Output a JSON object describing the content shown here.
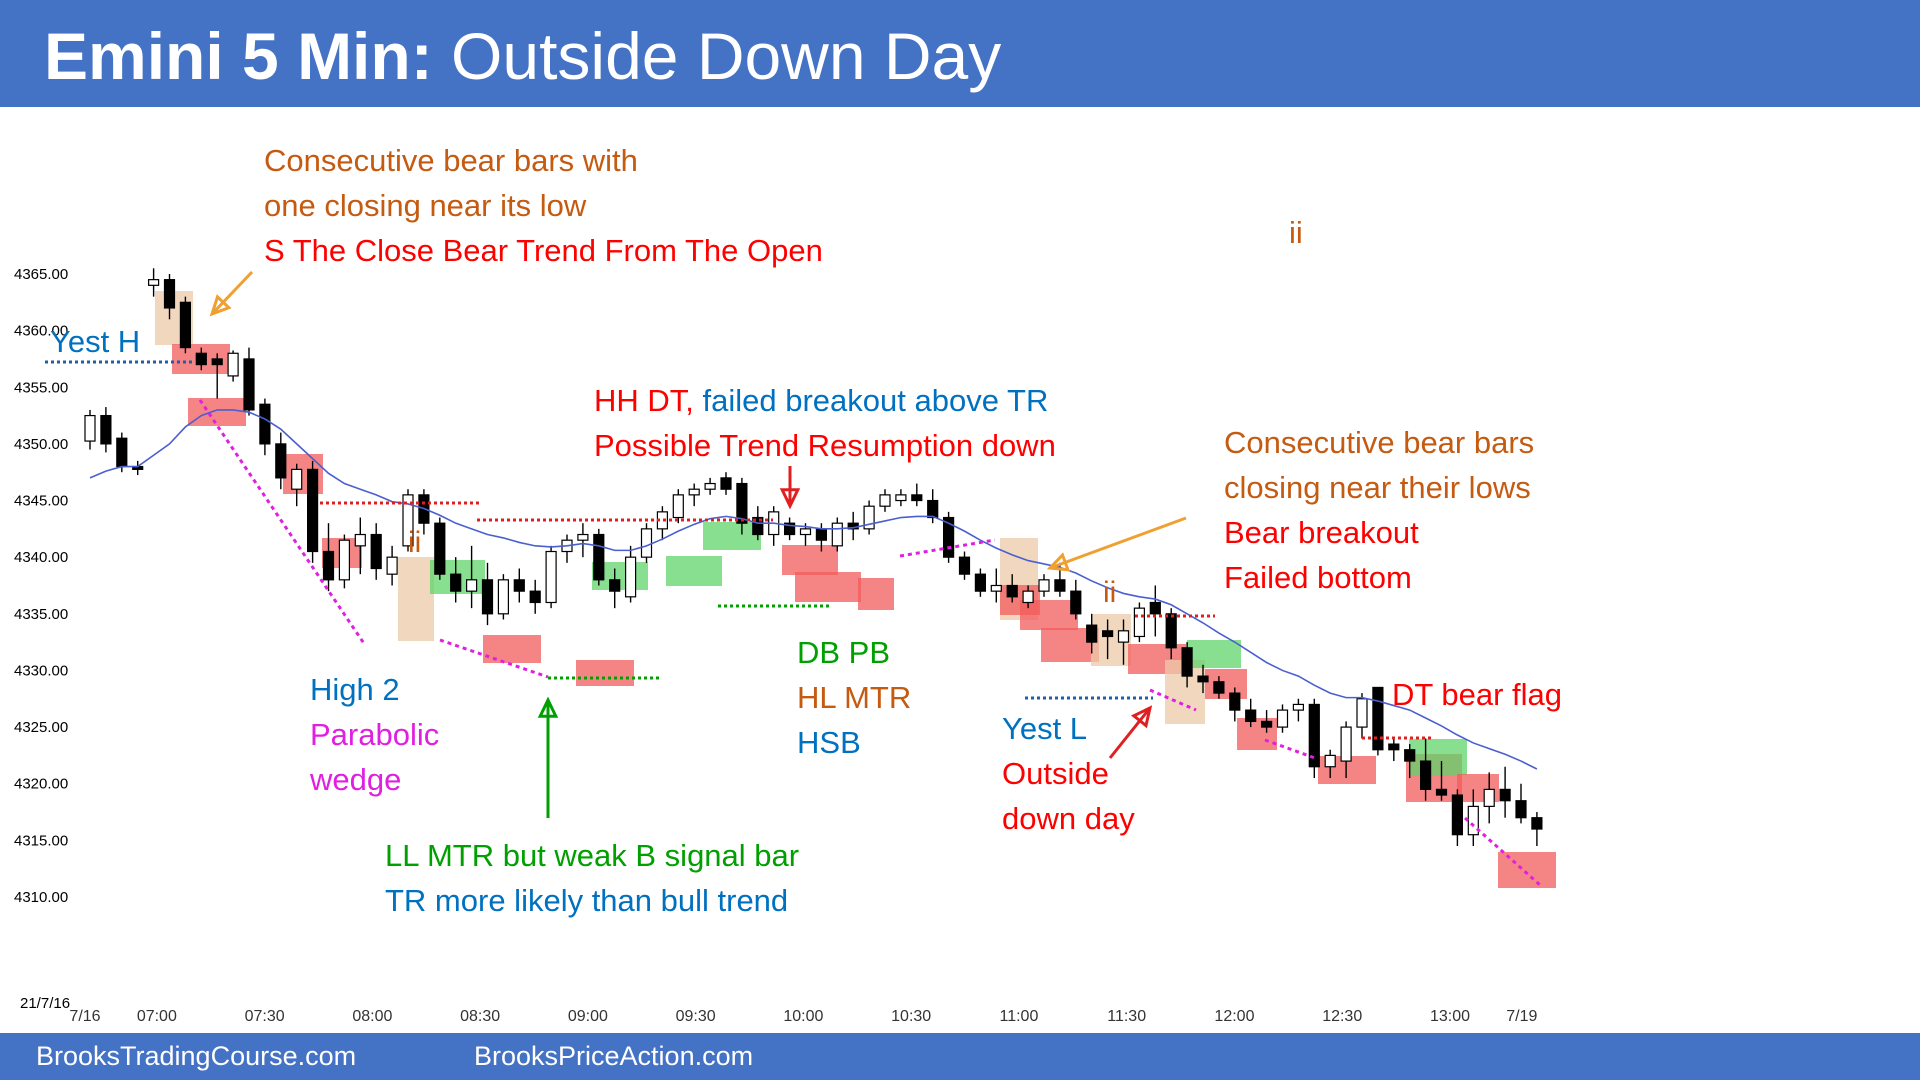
{
  "header": {
    "title_bold": "Emini 5 Min:",
    "title_rest": " Outside Down Day"
  },
  "footer": {
    "left": "BrooksTradingCourse.com",
    "right": "BrooksPriceAction.com"
  },
  "colors": {
    "header_bg": "#4472c4",
    "red_text": "#ff0000",
    "orange_text": "#c55a11",
    "blue_text": "#0070c0",
    "green_text": "#00a000",
    "magenta_text": "#e020e0",
    "ema_line": "#4a5fd0",
    "bear_highlight": "#f25c5c",
    "bull_highlight": "#5fd46a",
    "signal_highlight": "#edc9a9"
  },
  "chart_data": {
    "type": "candlestick",
    "date_label": "21/7/16",
    "ylim": [
      4310,
      4368
    ],
    "yticks": [
      "4310.00",
      "4315.00",
      "4320.00",
      "4325.00",
      "4330.00",
      "4335.00",
      "4340.00",
      "4345.00",
      "4350.00",
      "4355.00",
      "4360.00",
      "4365.00"
    ],
    "xticks": [
      {
        "label": "7/16",
        "bar": 0
      },
      {
        "label": "07:00",
        "bar": 4
      },
      {
        "label": "07:30",
        "bar": 10
      },
      {
        "label": "08:00",
        "bar": 16
      },
      {
        "label": "08:30",
        "bar": 22
      },
      {
        "label": "09:00",
        "bar": 28
      },
      {
        "label": "09:30",
        "bar": 34
      },
      {
        "label": "10:00",
        "bar": 40
      },
      {
        "label": "10:30",
        "bar": 46
      },
      {
        "label": "11:00",
        "bar": 52
      },
      {
        "label": "11:30",
        "bar": 58
      },
      {
        "label": "12:00",
        "bar": 64
      },
      {
        "label": "12:30",
        "bar": 70
      },
      {
        "label": "13:00",
        "bar": 76
      },
      {
        "label": "7/19",
        "bar": 80
      }
    ],
    "bars": [
      [
        4350.25,
        4353.0,
        4349.5,
        4352.5
      ],
      [
        4352.5,
        4353.25,
        4349.25,
        4350.0
      ],
      [
        4350.5,
        4351.0,
        4347.5,
        4348.0
      ],
      [
        4348.0,
        4348.5,
        4347.25,
        4347.75
      ],
      [
        4364.0,
        4365.5,
        4363.0,
        4364.5
      ],
      [
        4364.5,
        4365.0,
        4361.0,
        4362.0
      ],
      [
        4362.5,
        4363.0,
        4358.0,
        4358.5
      ],
      [
        4358.0,
        4358.5,
        4356.5,
        4357.0
      ],
      [
        4357.5,
        4358.0,
        4354.0,
        4357.0
      ],
      [
        4356.0,
        4358.25,
        4355.5,
        4358.0
      ],
      [
        4357.5,
        4358.5,
        4352.5,
        4353.0
      ],
      [
        4353.5,
        4354.0,
        4349.0,
        4350.0
      ],
      [
        4350.0,
        4351.0,
        4346.0,
        4347.0
      ],
      [
        4346.0,
        4348.25,
        4344.5,
        4347.75
      ],
      [
        4347.75,
        4348.5,
        4339.5,
        4340.5
      ],
      [
        4340.5,
        4343.0,
        4337.0,
        4338.0
      ],
      [
        4338.0,
        4342.0,
        4337.25,
        4341.5
      ],
      [
        4341.0,
        4343.5,
        4338.5,
        4342.0
      ],
      [
        4342.0,
        4343.0,
        4338.0,
        4339.0
      ],
      [
        4338.5,
        4341.0,
        4337.5,
        4340.0
      ],
      [
        4341.0,
        4346.0,
        4340.5,
        4345.5
      ],
      [
        4345.5,
        4346.0,
        4342.0,
        4343.0
      ],
      [
        4343.0,
        4343.5,
        4338.0,
        4338.5
      ],
      [
        4338.5,
        4340.0,
        4336.0,
        4337.0
      ],
      [
        4337.0,
        4341.0,
        4335.5,
        4338.0
      ],
      [
        4338.0,
        4339.5,
        4334.0,
        4335.0
      ],
      [
        4335.0,
        4338.5,
        4334.5,
        4338.0
      ],
      [
        4338.0,
        4339.0,
        4336.0,
        4337.0
      ],
      [
        4337.0,
        4338.0,
        4335.0,
        4336.0
      ],
      [
        4336.0,
        4341.0,
        4335.5,
        4340.5
      ],
      [
        4340.5,
        4342.0,
        4339.5,
        4341.5
      ],
      [
        4341.5,
        4343.0,
        4340.0,
        4342.0
      ],
      [
        4342.0,
        4342.5,
        4337.5,
        4338.0
      ],
      [
        4338.0,
        4339.0,
        4335.5,
        4337.0
      ],
      [
        4336.5,
        4341.0,
        4336.0,
        4340.0
      ],
      [
        4340.0,
        4343.0,
        4339.5,
        4342.5
      ],
      [
        4342.5,
        4344.5,
        4341.5,
        4344.0
      ],
      [
        4343.5,
        4346.0,
        4343.0,
        4345.5
      ],
      [
        4345.5,
        4346.5,
        4344.5,
        4346.0
      ],
      [
        4346.0,
        4347.0,
        4345.5,
        4346.5
      ],
      [
        4347.0,
        4347.5,
        4345.5,
        4346.0
      ],
      [
        4346.5,
        4347.0,
        4342.0,
        4343.0
      ],
      [
        4343.5,
        4344.5,
        4341.5,
        4342.0
      ],
      [
        4342.0,
        4344.5,
        4341.0,
        4344.0
      ],
      [
        4343.0,
        4343.5,
        4341.5,
        4342.0
      ],
      [
        4342.0,
        4343.0,
        4341.0,
        4342.5
      ],
      [
        4342.5,
        4343.0,
        4340.5,
        4341.5
      ],
      [
        4341.0,
        4343.5,
        4340.5,
        4343.0
      ],
      [
        4343.0,
        4344.0,
        4341.5,
        4342.5
      ],
      [
        4342.5,
        4345.0,
        4342.0,
        4344.5
      ],
      [
        4344.5,
        4346.0,
        4344.0,
        4345.5
      ],
      [
        4345.0,
        4346.0,
        4344.5,
        4345.5
      ],
      [
        4345.5,
        4346.5,
        4344.5,
        4345.0
      ],
      [
        4345.0,
        4346.0,
        4343.0,
        4343.5
      ],
      [
        4343.5,
        4344.0,
        4339.5,
        4340.0
      ],
      [
        4340.0,
        4340.5,
        4338.0,
        4338.5
      ],
      [
        4338.5,
        4339.0,
        4336.5,
        4337.0
      ],
      [
        4337.0,
        4339.0,
        4336.0,
        4337.5
      ],
      [
        4337.5,
        4338.5,
        4336.0,
        4336.5
      ],
      [
        4336.0,
        4337.5,
        4335.5,
        4337.0
      ],
      [
        4337.0,
        4338.5,
        4336.5,
        4338.0
      ],
      [
        4338.0,
        4339.5,
        4336.5,
        4337.0
      ],
      [
        4337.0,
        4338.0,
        4334.5,
        4335.0
      ],
      [
        4334.0,
        4335.0,
        4331.5,
        4332.5
      ],
      [
        4333.5,
        4334.5,
        4331.0,
        4333.0
      ],
      [
        4332.5,
        4334.5,
        4330.5,
        4333.5
      ],
      [
        4333.0,
        4336.0,
        4332.5,
        4335.5
      ],
      [
        4336.0,
        4337.5,
        4333.0,
        4335.0
      ],
      [
        4335.0,
        4335.5,
        4331.0,
        4332.0
      ],
      [
        4332.0,
        4332.5,
        4328.5,
        4329.5
      ],
      [
        4329.5,
        4330.5,
        4328.0,
        4329.0
      ],
      [
        4329.0,
        4329.5,
        4327.5,
        4328.0
      ],
      [
        4328.0,
        4328.5,
        4325.5,
        4326.5
      ],
      [
        4326.5,
        4327.5,
        4325.0,
        4325.5
      ],
      [
        4325.5,
        4326.5,
        4324.5,
        4325.0
      ],
      [
        4325.0,
        4327.0,
        4324.5,
        4326.5
      ],
      [
        4326.5,
        4327.5,
        4325.5,
        4327.0
      ],
      [
        4327.0,
        4327.5,
        4320.5,
        4321.5
      ],
      [
        4321.5,
        4323.0,
        4320.5,
        4322.5
      ],
      [
        4322.0,
        4325.5,
        4320.5,
        4325.0
      ],
      [
        4325.0,
        4328.0,
        4324.0,
        4327.5
      ],
      [
        4328.5,
        4328.5,
        4322.5,
        4323.0
      ],
      [
        4323.5,
        4324.0,
        4322.0,
        4323.0
      ],
      [
        4323.0,
        4323.5,
        4320.5,
        4322.0
      ],
      [
        4322.0,
        4324.0,
        4318.5,
        4319.5
      ],
      [
        4319.5,
        4322.0,
        4318.5,
        4319.0
      ],
      [
        4319.0,
        4319.5,
        4314.5,
        4315.5
      ],
      [
        4315.5,
        4319.5,
        4314.5,
        4318.0
      ],
      [
        4318.0,
        4321.0,
        4316.5,
        4319.5
      ],
      [
        4319.5,
        4321.5,
        4317.0,
        4318.5
      ],
      [
        4318.5,
        4320.0,
        4316.5,
        4317.0
      ],
      [
        4317.0,
        4317.5,
        4314.5,
        4316.0
      ]
    ],
    "ema": [
      4347.0,
      4347.6,
      4348.0,
      4348.0,
      4349.0,
      4350.0,
      4351.5,
      4352.5,
      4353.0,
      4353.0,
      4352.8,
      4352.2,
      4351.3,
      4350.0,
      4348.7,
      4347.4,
      4346.5,
      4346.0,
      4345.5,
      4344.9,
      4344.7,
      4344.3,
      4343.7,
      4343.0,
      4342.5,
      4342.0,
      4341.7,
      4341.3,
      4341.0,
      4340.9,
      4341.0,
      4341.2,
      4341.0,
      4340.6,
      4340.6,
      4341.0,
      4341.6,
      4342.3,
      4342.9,
      4343.4,
      4343.6,
      4343.4,
      4343.0,
      4343.0,
      4342.8,
      4342.7,
      4342.5,
      4342.5,
      4342.6,
      4342.9,
      4343.2,
      4343.5,
      4343.6,
      4343.6,
      4343.0,
      4342.3,
      4341.5,
      4340.8,
      4340.2,
      4339.7,
      4339.4,
      4339.1,
      4338.6,
      4337.9,
      4337.3,
      4336.8,
      4336.5,
      4336.3,
      4335.8,
      4335.0,
      4334.2,
      4333.3,
      4332.5,
      4331.6,
      4330.7,
      4330.0,
      4329.5,
      4328.7,
      4328.0,
      4327.6,
      4327.6,
      4327.3,
      4326.9,
      4326.5,
      4325.8,
      4325.1,
      4324.3,
      4323.6,
      4323.1,
      4322.6,
      4322.0,
      4321.3
    ]
  },
  "annotations": {
    "consecutive_bear_top": {
      "line1": "Consecutive bear bars with",
      "line2": "one closing near its low",
      "line3": "S The Close Bear Trend From The Open"
    },
    "ii_top": "ii",
    "yest_h": "Yest H",
    "hh_dt": {
      "part1": "HH DT,",
      "part2": "failed breakout above TR",
      "line2": "Possible Trend Resumption down"
    },
    "consecutive_bear_right": {
      "line1": "Consecutive bear bars",
      "line2": "closing near their lows",
      "line3": "Bear breakout",
      "line4": "Failed bottom"
    },
    "ii_left": "ii",
    "ii_mid": "ii",
    "high2": {
      "line1": "High 2",
      "line2": "Parabolic",
      "line3": "wedge"
    },
    "db_pb": {
      "line1": "DB PB",
      "line2": "HL MTR",
      "line3": "HSB"
    },
    "yest_l": "Yest L",
    "outside_down": {
      "line1": "Outside",
      "line2": "down day"
    },
    "dt_bear_flag": "DT bear flag",
    "ll_mtr": {
      "line1": "LL MTR but weak B signal bar",
      "line2": "TR more likely than bull trend"
    }
  }
}
